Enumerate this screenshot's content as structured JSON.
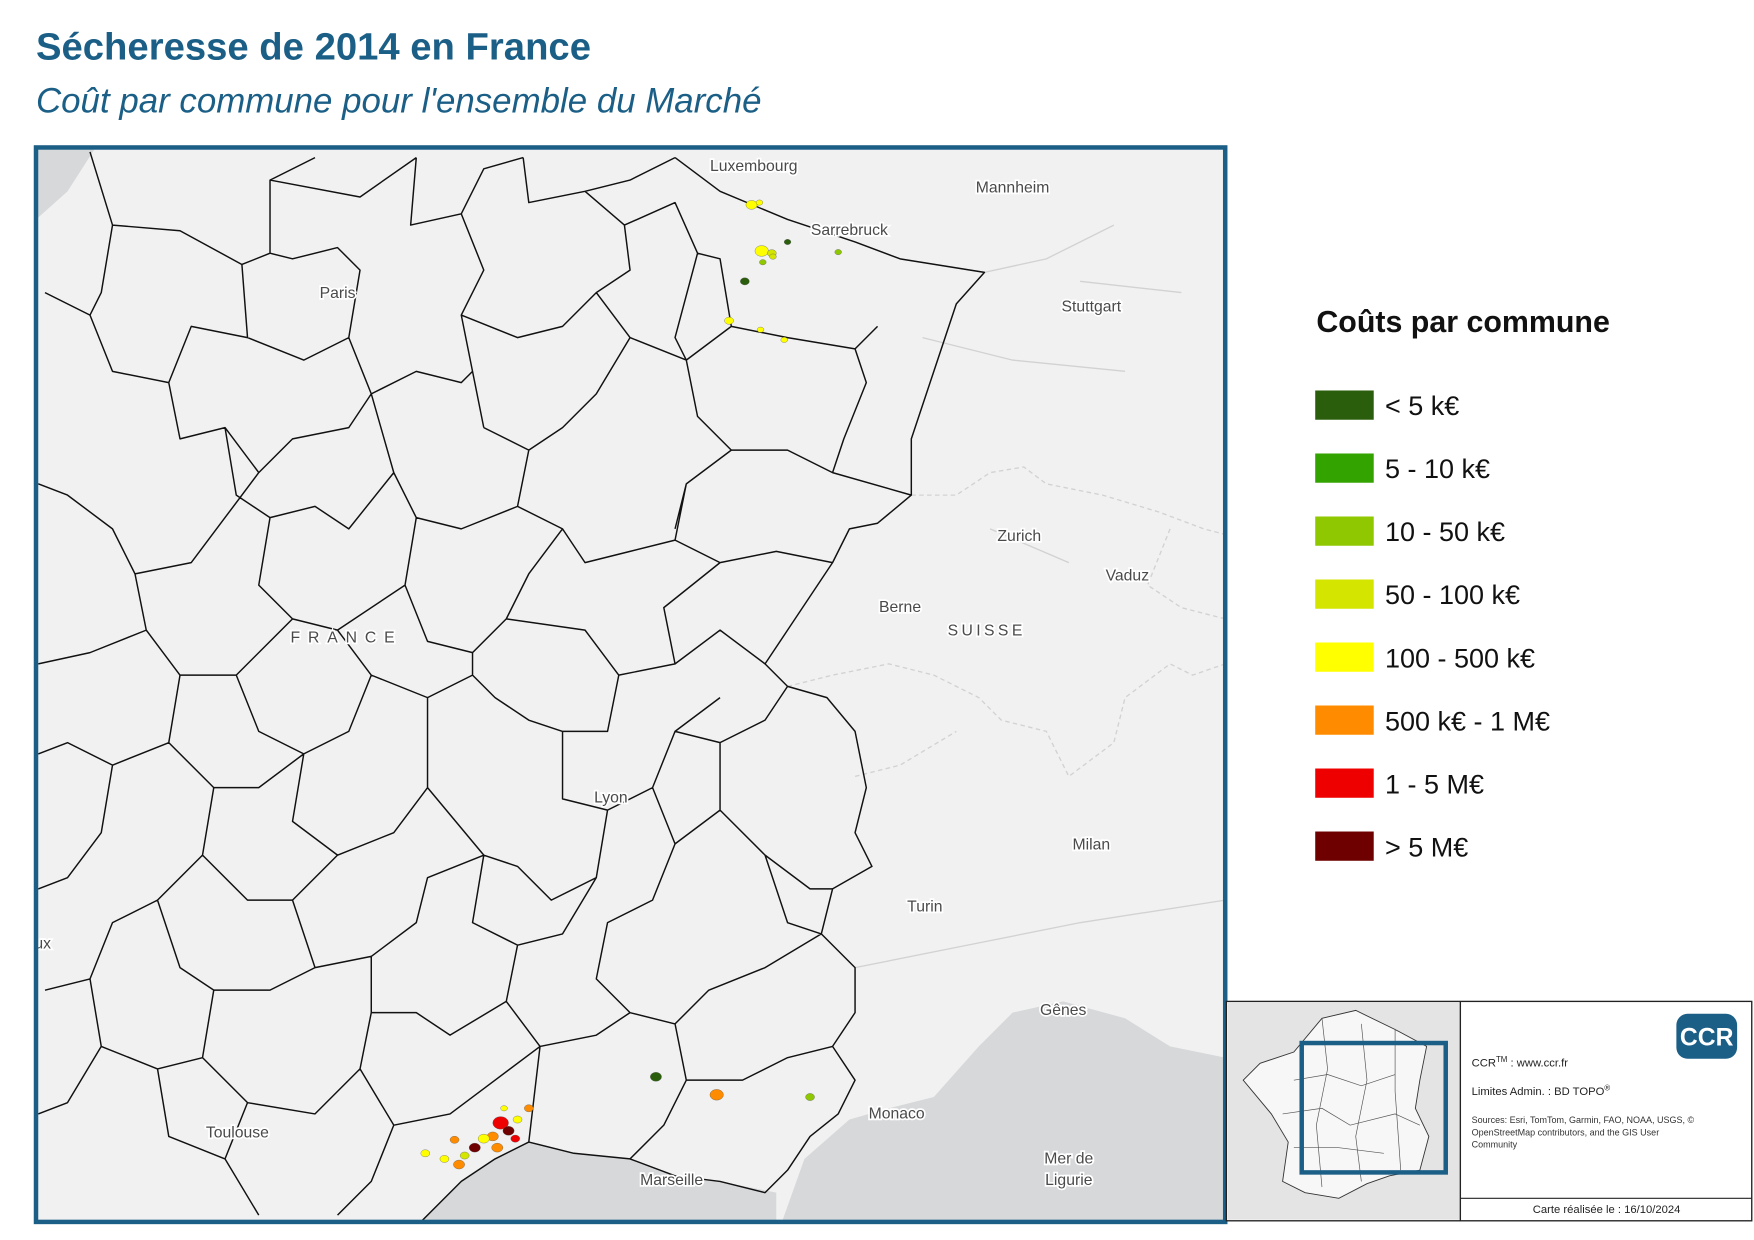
{
  "header": {
    "title": "Sécheresse de 2014 en France",
    "subtitle": "Coût par commune pour l'ensemble du Marché"
  },
  "map": {
    "labels": [
      "Luxembourg",
      "Mannheim",
      "Sarrebruck",
      "Paris",
      "Stuttgart",
      "Zurich",
      "Vaduz",
      "Berne",
      "SUISSE",
      "FRANCE",
      "Lyon",
      "Milan",
      "Turin",
      "Gênes",
      "Monaco",
      "Toulouse",
      "Marseille",
      "Mer de",
      "Ligurie",
      "ux"
    ]
  },
  "legend": {
    "title": "Coûts par commune",
    "items": [
      {
        "label": "< 5 k€",
        "color": "#2b5e0c"
      },
      {
        "label": "5 - 10 k€",
        "color": "#33a300"
      },
      {
        "label": "10 - 50 k€",
        "color": "#8fc800"
      },
      {
        "label": "50 - 100 k€",
        "color": "#d4e600"
      },
      {
        "label": "100 - 500 k€",
        "color": "#ffff00"
      },
      {
        "label": "500 k€ - 1 M€",
        "color": "#ff8c00"
      },
      {
        "label": "1 - 5 M€",
        "color": "#ee0000"
      },
      {
        "label": "> 5 M€",
        "color": "#6e0000"
      }
    ]
  },
  "info": {
    "logo": "CCR",
    "ccr": "CCR",
    "tm": "TM",
    "site": " : www.ccr.fr",
    "limits": "Limites Admin. : BD TOPO",
    "reg": "®",
    "sources": [
      "Sources: Esri, TomTom, Garmin, FAO, NOAA, USGS, ©",
      "OpenStreetMap contributors, and the GIS User",
      "Community"
    ],
    "date": "Carte réalisée le : 16/10/2024"
  }
}
